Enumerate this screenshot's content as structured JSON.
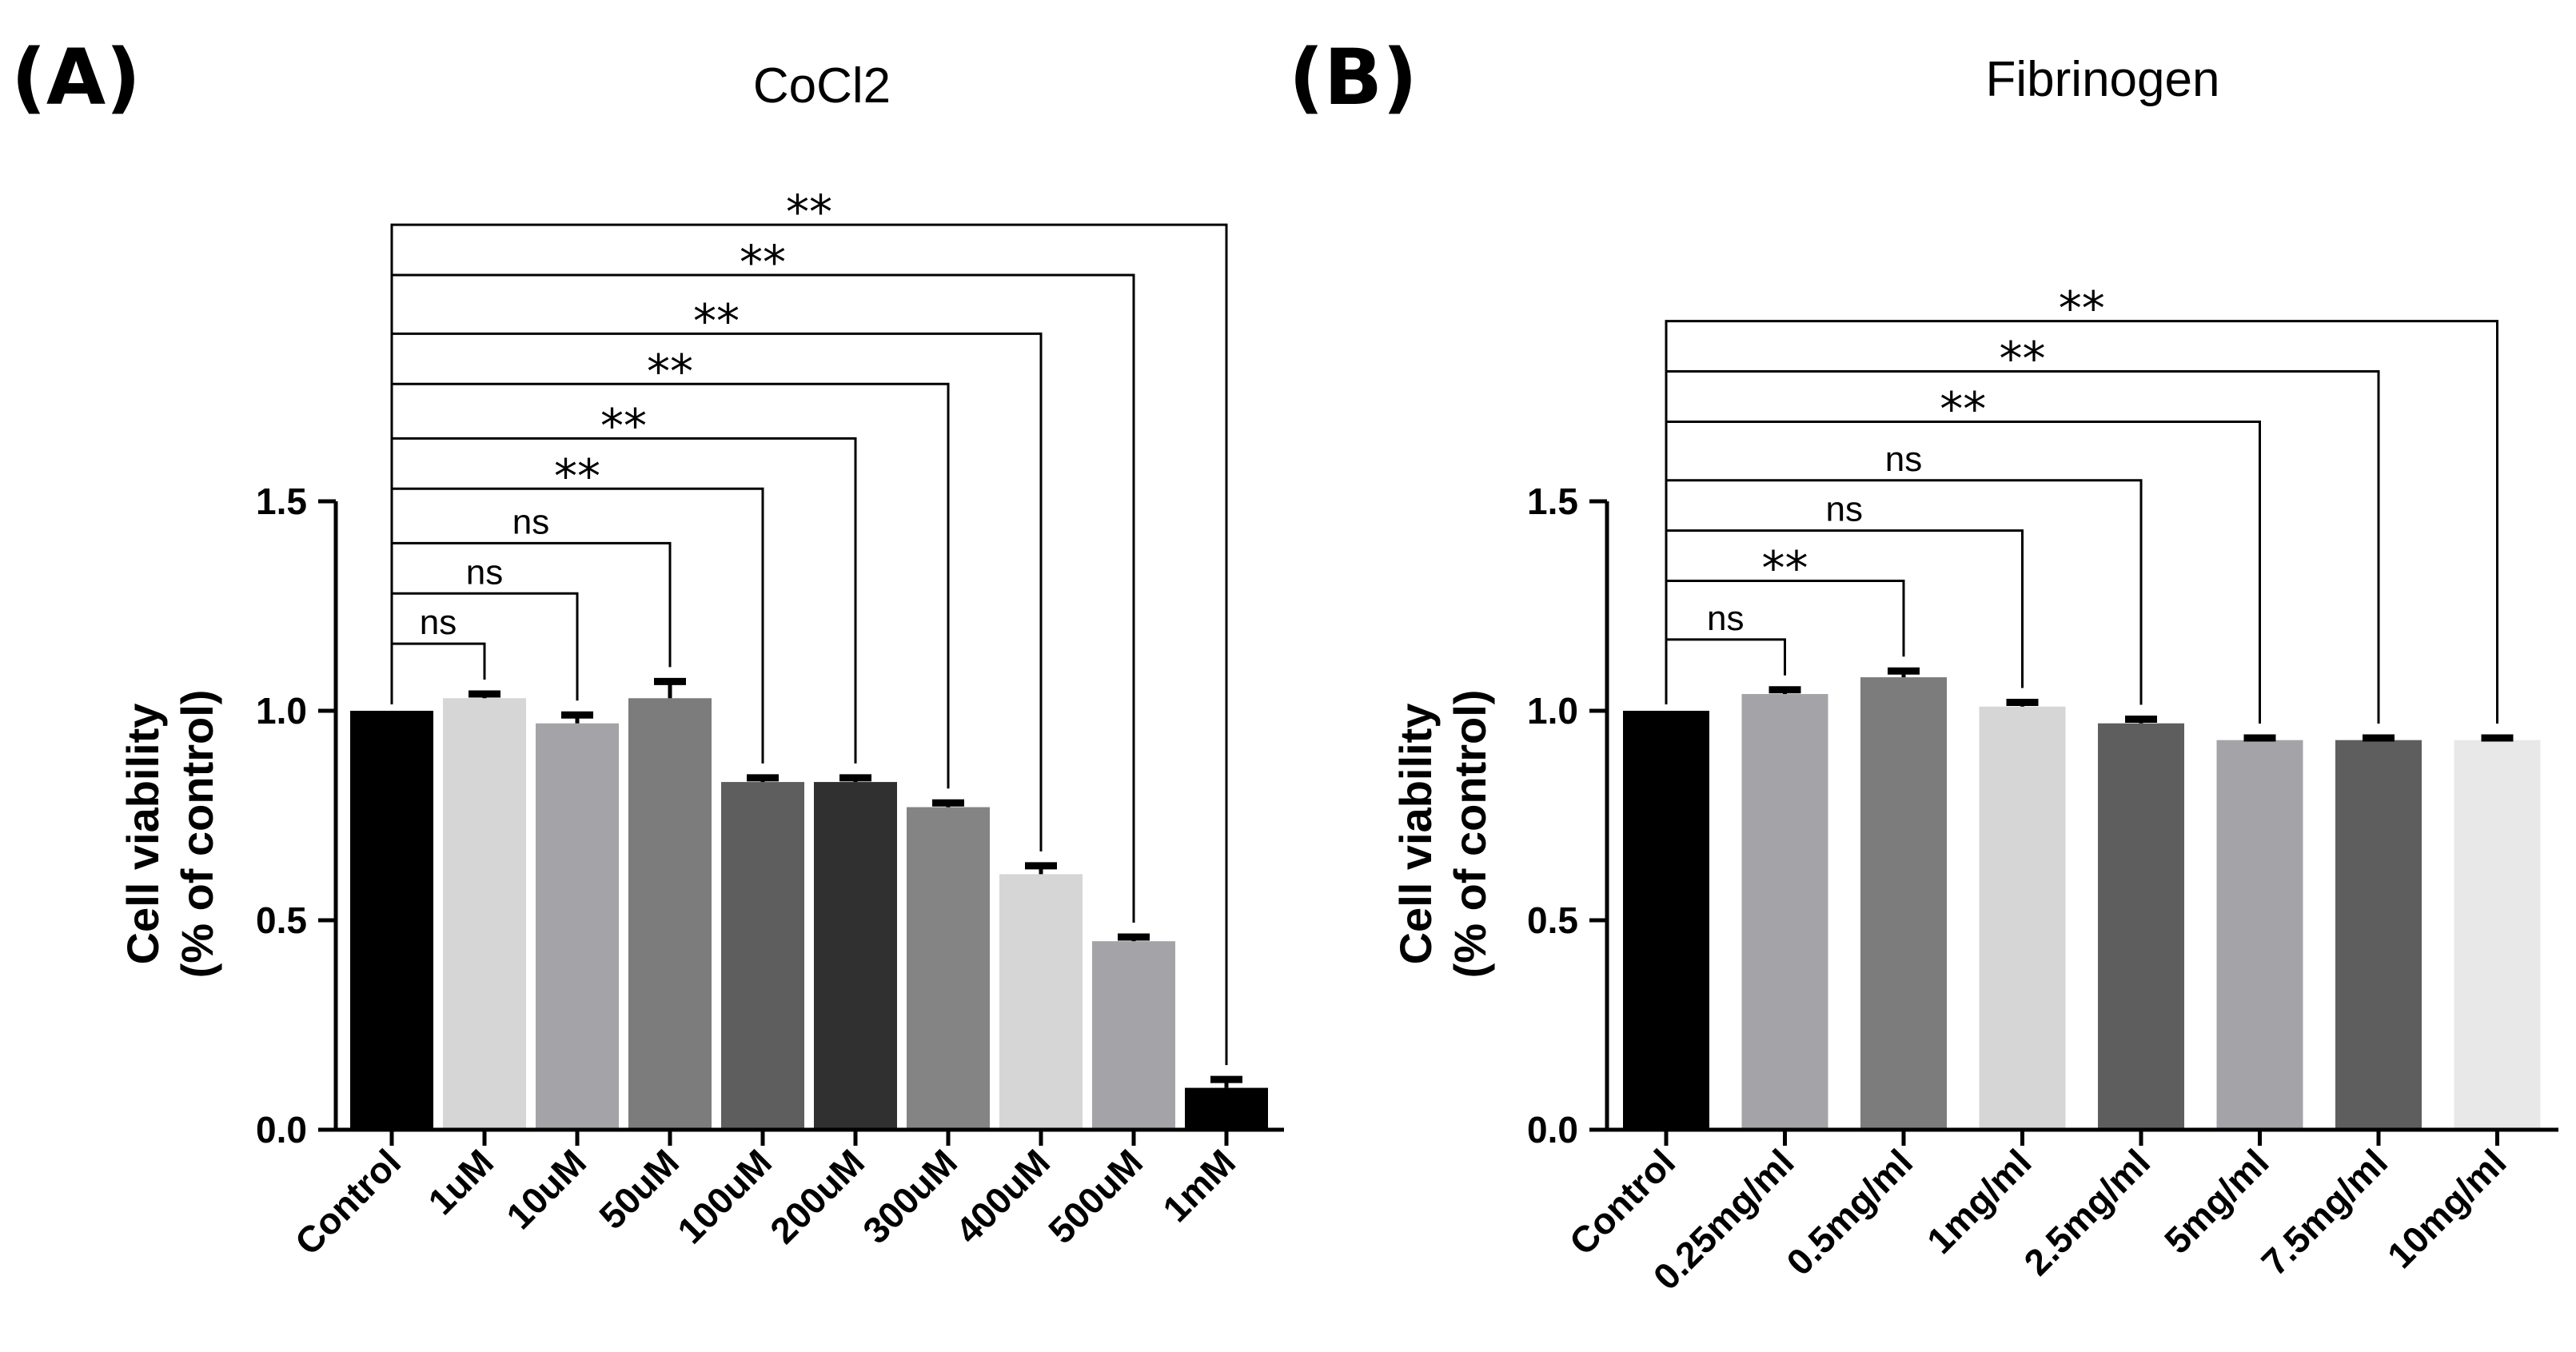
{
  "panels": [
    {
      "label": "(A)",
      "title": "CoCl2",
      "ylabel_line1": "Cell viability",
      "ylabel_line2": "(% of control)"
    },
    {
      "label": "(B)",
      "title": "Fibrinogen",
      "ylabel_line1": "Cell viability",
      "ylabel_line2": "(% of control)"
    }
  ],
  "chart_data": [
    {
      "type": "bar",
      "title": "CoCl2",
      "panel_label": "(A)",
      "xlabel": "",
      "ylabel": "Cell viability (% of control)",
      "ylim": [
        0,
        1.5
      ],
      "yticks": [
        "0.0",
        "0.5",
        "1.0",
        "1.5"
      ],
      "ytick_values": [
        0,
        0.5,
        1.0,
        1.5
      ],
      "categories": [
        "Control",
        "1uM",
        "10uM",
        "50uM",
        "100uM",
        "200uM",
        "300uM",
        "400uM",
        "500uM",
        "1mM"
      ],
      "values": [
        1.0,
        1.03,
        0.97,
        1.03,
        0.83,
        0.83,
        0.77,
        0.61,
        0.45,
        0.1
      ],
      "errors": [
        0.0,
        0.01,
        0.02,
        0.04,
        0.01,
        0.01,
        0.01,
        0.02,
        0.01,
        0.02
      ],
      "bar_colors": [
        "#000000",
        "#d6d6d6",
        "#a4a4a8",
        "#7c7c7c",
        "#5e5e5e",
        "#303030",
        "#848484",
        "#d6d6d6",
        "#a4a4a8",
        "#000000"
      ],
      "comparisons": [
        {
          "target": "1uM",
          "label": "ns",
          "bracket_y": 1.16
        },
        {
          "target": "10uM",
          "label": "ns",
          "bracket_y": 1.28
        },
        {
          "target": "50uM",
          "label": "ns",
          "bracket_y": 1.4
        },
        {
          "target": "100uM",
          "label": "**",
          "bracket_y": 1.53
        },
        {
          "target": "200uM",
          "label": "**",
          "bracket_y": 1.65
        },
        {
          "target": "300uM",
          "label": "**",
          "bracket_y": 1.78
        },
        {
          "target": "400uM",
          "label": "**",
          "bracket_y": 1.9
        },
        {
          "target": "500uM",
          "label": "**",
          "bracket_y": 2.04
        },
        {
          "target": "1mM",
          "label": "**",
          "bracket_y": 2.16
        }
      ]
    },
    {
      "type": "bar",
      "title": "Fibrinogen",
      "panel_label": "(B)",
      "xlabel": "",
      "ylabel": "Cell viability (% of control)",
      "ylim": [
        0,
        1.5
      ],
      "yticks": [
        "0.0",
        "0.5",
        "1.0",
        "1.5"
      ],
      "ytick_values": [
        0,
        0.5,
        1.0,
        1.5
      ],
      "categories": [
        "Control",
        "0.25mg/ml",
        "0.5mg/ml",
        "1mg/ml",
        "2.5mg/ml",
        "5mg/ml",
        "7.5mg/ml",
        "10mg/ml"
      ],
      "values": [
        1.0,
        1.04,
        1.08,
        1.01,
        0.97,
        0.93,
        0.93,
        0.93
      ],
      "errors": [
        0.0,
        0.01,
        0.015,
        0.01,
        0.01,
        0.005,
        0.005,
        0.005
      ],
      "bar_colors": [
        "#000000",
        "#a4a4a8",
        "#7c7c7c",
        "#d6d6d6",
        "#5e5e5e",
        "#a4a4a8",
        "#5e5e5e",
        "#e8e8e8"
      ],
      "comparisons": [
        {
          "target": "0.25mg/ml",
          "label": "ns",
          "bracket_y": 1.17
        },
        {
          "target": "0.5mg/ml",
          "label": "**",
          "bracket_y": 1.31
        },
        {
          "target": "1mg/ml",
          "label": "ns",
          "bracket_y": 1.43
        },
        {
          "target": "2.5mg/ml",
          "label": "ns",
          "bracket_y": 1.55
        },
        {
          "target": "5mg/ml",
          "label": "**",
          "bracket_y": 1.69
        },
        {
          "target": "7.5mg/ml",
          "label": "**",
          "bracket_y": 1.81
        },
        {
          "target": "10mg/ml",
          "label": "**",
          "bracket_y": 1.93
        }
      ]
    }
  ]
}
